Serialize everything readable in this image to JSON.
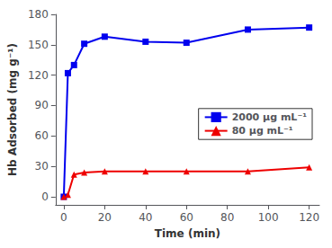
{
  "chart_data": {
    "type": "line",
    "xlabel": "Time (min)",
    "ylabel": "Hb Adsorbed (mg g⁻¹)",
    "series": [
      {
        "name": "2000 μg mL⁻¹",
        "color": "#0000EE",
        "marker": "square",
        "x": [
          0,
          2,
          5,
          10,
          20,
          40,
          60,
          90,
          120
        ],
        "values": [
          0,
          122,
          130,
          151,
          158,
          153,
          152,
          165,
          167
        ]
      },
      {
        "name": "80 μg mL⁻¹",
        "color": "#EE0000",
        "marker": "triangle",
        "x": [
          0,
          2,
          5,
          10,
          20,
          40,
          60,
          90,
          120
        ],
        "values": [
          0,
          2,
          22,
          24,
          25,
          25,
          25,
          25,
          29
        ]
      }
    ],
    "xlim": [
      -4,
      125
    ],
    "xticks": [
      0,
      20,
      40,
      60,
      80,
      100,
      120
    ],
    "ylim": [
      -8,
      180
    ],
    "yticks": [
      0,
      30,
      60,
      90,
      120,
      150,
      180
    ],
    "grid": false,
    "legend": "right"
  }
}
